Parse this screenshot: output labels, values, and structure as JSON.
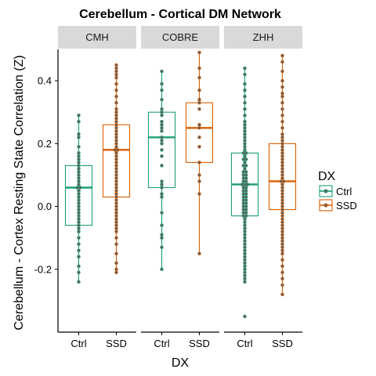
{
  "chart_data": {
    "type": "boxplot",
    "title": "Cerebellum - Cortical DM Network",
    "xlabel": "DX",
    "ylabel": "Cerebellum - Cortex Resting State Correlation (Z)",
    "ylim": [
      -0.4,
      0.5
    ],
    "yticks": [
      -0.2,
      0.0,
      0.2,
      0.4
    ],
    "ytick_labels": [
      "-0.2",
      "0.0",
      "0.2",
      "0.4"
    ],
    "categories": [
      "Ctrl",
      "SSD"
    ],
    "legend": {
      "title": "DX",
      "position": "right",
      "entries": [
        "Ctrl",
        "SSD"
      ]
    },
    "colors": {
      "Ctrl": "#1b9e77",
      "SSD": "#d95f02",
      "point": "#636363",
      "strip": "#d9d9d9"
    },
    "grid": false,
    "facets": [
      {
        "label": "CMH",
        "boxes": [
          {
            "group": "Ctrl",
            "min": -0.24,
            "q1": -0.06,
            "median": 0.06,
            "q3": 0.13,
            "max": 0.29,
            "points": [
              0.29,
              0.27,
              0.23,
              0.22,
              0.19,
              0.17,
              0.16,
              0.15,
              0.14,
              0.13,
              0.12,
              0.11,
              0.1,
              0.09,
              0.08,
              0.07,
              0.06,
              0.06,
              0.05,
              0.04,
              0.03,
              0.02,
              0.01,
              0.0,
              -0.01,
              -0.02,
              -0.03,
              -0.04,
              -0.05,
              -0.06,
              -0.07,
              -0.08,
              -0.1,
              -0.12,
              -0.14,
              -0.16,
              -0.19,
              -0.21,
              -0.24
            ]
          },
          {
            "group": "SSD",
            "min": -0.21,
            "q1": 0.03,
            "median": 0.18,
            "q3": 0.26,
            "max": 0.45,
            "points": [
              0.45,
              0.44,
              0.43,
              0.42,
              0.41,
              0.39,
              0.37,
              0.35,
              0.33,
              0.31,
              0.3,
              0.29,
              0.28,
              0.27,
              0.26,
              0.25,
              0.24,
              0.23,
              0.22,
              0.21,
              0.2,
              0.19,
              0.18,
              0.18,
              0.17,
              0.16,
              0.15,
              0.14,
              0.13,
              0.12,
              0.11,
              0.1,
              0.09,
              0.08,
              0.07,
              0.06,
              0.05,
              0.04,
              0.03,
              0.02,
              0.01,
              0.0,
              -0.01,
              -0.02,
              -0.03,
              -0.04,
              -0.05,
              -0.06,
              -0.07,
              -0.08,
              -0.1,
              -0.12,
              -0.15,
              -0.18,
              -0.2,
              -0.21
            ]
          }
        ]
      },
      {
        "label": "COBRE",
        "boxes": [
          {
            "group": "Ctrl",
            "min": -0.2,
            "q1": 0.06,
            "median": 0.22,
            "q3": 0.3,
            "max": 0.43,
            "points": [
              0.43,
              0.39,
              0.37,
              0.34,
              0.31,
              0.3,
              0.29,
              0.27,
              0.26,
              0.25,
              0.24,
              0.22,
              0.21,
              0.2,
              0.18,
              0.16,
              0.13,
              0.08,
              0.07,
              0.06,
              0.04,
              0.03,
              -0.02,
              -0.06,
              -0.09,
              -0.1,
              -0.13,
              -0.2
            ]
          },
          {
            "group": "SSD",
            "min": -0.15,
            "q1": 0.14,
            "median": 0.25,
            "q3": 0.33,
            "max": 0.49,
            "points": [
              0.49,
              0.44,
              0.41,
              0.37,
              0.34,
              0.33,
              0.31,
              0.26,
              0.25,
              0.22,
              0.19,
              0.14,
              0.1,
              0.08,
              0.04,
              -0.15
            ]
          }
        ]
      },
      {
        "label": "ZHH",
        "boxes": [
          {
            "group": "Ctrl",
            "min": -0.24,
            "q1": -0.03,
            "median": 0.07,
            "q3": 0.17,
            "max": 0.44,
            "points": [
              0.44,
              0.42,
              0.39,
              0.37,
              0.35,
              0.33,
              0.31,
              0.29,
              0.27,
              0.26,
              0.25,
              0.24,
              0.23,
              0.22,
              0.21,
              0.2,
              0.19,
              0.18,
              0.17,
              0.17,
              0.16,
              0.15,
              0.15,
              0.14,
              0.13,
              0.13,
              0.12,
              0.11,
              0.11,
              0.1,
              0.1,
              0.09,
              0.09,
              0.08,
              0.08,
              0.07,
              0.07,
              0.07,
              0.06,
              0.06,
              0.05,
              0.05,
              0.04,
              0.04,
              0.03,
              0.03,
              0.02,
              0.02,
              0.01,
              0.01,
              0.0,
              0.0,
              -0.01,
              -0.01,
              -0.02,
              -0.02,
              -0.03,
              -0.03,
              -0.04,
              -0.05,
              -0.06,
              -0.07,
              -0.08,
              -0.09,
              -0.1,
              -0.11,
              -0.12,
              -0.13,
              -0.14,
              -0.15,
              -0.16,
              -0.17,
              -0.18,
              -0.19,
              -0.2,
              -0.21,
              -0.22,
              -0.23,
              -0.24,
              -0.35
            ]
          },
          {
            "group": "SSD",
            "min": -0.28,
            "q1": -0.01,
            "median": 0.08,
            "q3": 0.2,
            "max": 0.48,
            "points": [
              0.48,
              0.46,
              0.43,
              0.4,
              0.38,
              0.36,
              0.35,
              0.33,
              0.31,
              0.29,
              0.27,
              0.25,
              0.23,
              0.22,
              0.21,
              0.2,
              0.19,
              0.18,
              0.17,
              0.16,
              0.15,
              0.14,
              0.13,
              0.12,
              0.11,
              0.1,
              0.09,
              0.08,
              0.08,
              0.07,
              0.06,
              0.05,
              0.04,
              0.03,
              0.02,
              0.01,
              0.0,
              -0.01,
              -0.02,
              -0.03,
              -0.04,
              -0.05,
              -0.06,
              -0.07,
              -0.08,
              -0.09,
              -0.1,
              -0.11,
              -0.12,
              -0.13,
              -0.14,
              -0.15,
              -0.17,
              -0.19,
              -0.21,
              -0.23,
              -0.25,
              -0.28
            ]
          }
        ]
      }
    ]
  }
}
